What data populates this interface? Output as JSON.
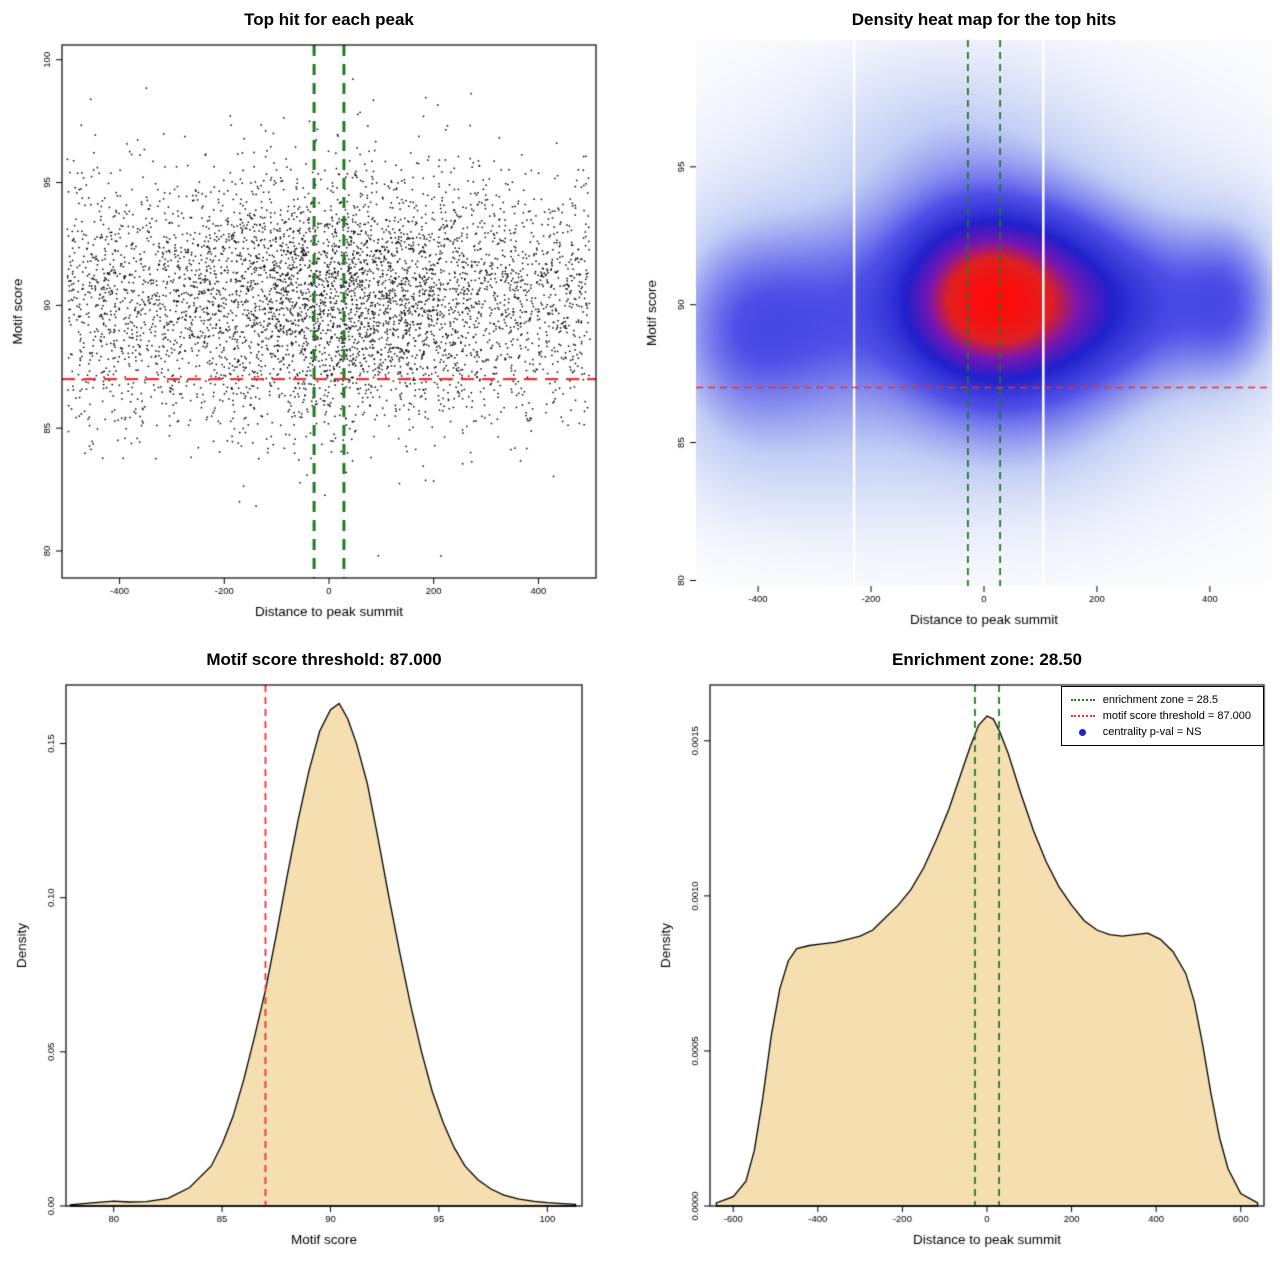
{
  "colors": {
    "red": "#F03030",
    "green": "#217A21",
    "blue": "#2020CC",
    "wheat": "#F5DEB0",
    "black": "#000000",
    "white": "#FFFFFF"
  },
  "chart_data": [
    {
      "id": "scatter",
      "type": "scatter",
      "title": "Top hit for each peak",
      "xlabel": "Distance to peak summit",
      "ylabel": "Motif score",
      "xlim": [
        -510,
        510
      ],
      "ylim": [
        78.9,
        100.6
      ],
      "xticks": [
        -400,
        -200,
        0,
        200,
        400
      ],
      "yticks": [
        80,
        85,
        90,
        95,
        100
      ],
      "n_points": 5200,
      "seed": 1337,
      "x_dist": {
        "uniform_frac": 0.7,
        "uniform_range": [
          -500,
          500
        ],
        "normal_mean": 0,
        "normal_sd": 150
      },
      "y_dist": {
        "mean": 90.3,
        "sd": 2.5,
        "clip": [
          79.5,
          100.2
        ]
      },
      "hline": {
        "y": 87
      },
      "vlines": {
        "x": [
          -28.5,
          28.5
        ]
      }
    },
    {
      "id": "heatmap",
      "type": "heatmap",
      "title": "Density heat map for the top hits",
      "xlabel": "Distance to peak summit",
      "ylabel": "Motif score",
      "xlim": [
        -510,
        510
      ],
      "ylim": [
        79.8,
        99.6
      ],
      "xticks": [
        -400,
        -200,
        0,
        200,
        400
      ],
      "yticks": [
        80,
        85,
        90,
        95
      ],
      "hline": {
        "y": 87
      },
      "vlines": {
        "x": [
          -28.5,
          28.5
        ]
      },
      "white_stripes_x": [
        -230,
        105
      ],
      "color_stops": [
        {
          "t": 0.0,
          "c": "#FFFFFF"
        },
        {
          "t": 0.2,
          "c": "#C2CEF5"
        },
        {
          "t": 0.42,
          "c": "#5050E8"
        },
        {
          "t": 0.6,
          "c": "#2020CC"
        },
        {
          "t": 0.74,
          "c": "#7716B2"
        },
        {
          "t": 0.86,
          "c": "#E02020"
        },
        {
          "t": 1.0,
          "c": "#FF0A0A"
        }
      ],
      "blobs": [
        {
          "x": 0,
          "y": 90.2,
          "sx": 100,
          "sy": 2.1,
          "a": 1.0
        },
        {
          "x": 0,
          "y": 90.1,
          "sx": 160,
          "sy": 3.1,
          "a": 0.5
        },
        {
          "x": -10,
          "y": 90.0,
          "sx": 340,
          "sy": 4.6,
          "a": 0.28
        },
        {
          "x": -440,
          "y": 89.0,
          "sx": 85,
          "sy": 2.6,
          "a": 0.45
        },
        {
          "x": -300,
          "y": 89.3,
          "sx": 90,
          "sy": 2.4,
          "a": 0.33
        },
        {
          "x": 150,
          "y": 89.9,
          "sx": 90,
          "sy": 2.3,
          "a": 0.4
        },
        {
          "x": 310,
          "y": 90.0,
          "sx": 110,
          "sy": 2.1,
          "a": 0.4
        },
        {
          "x": 440,
          "y": 90.1,
          "sx": 60,
          "sy": 2.0,
          "a": 0.38
        },
        {
          "x": -320,
          "y": 84.3,
          "sx": 160,
          "sy": 1.7,
          "a": 0.1
        },
        {
          "x": -60,
          "y": 96.3,
          "sx": 150,
          "sy": 2.0,
          "a": 0.13
        },
        {
          "x": 80,
          "y": 84.8,
          "sx": 120,
          "sy": 1.6,
          "a": 0.09
        }
      ]
    },
    {
      "id": "score_density",
      "type": "area",
      "title": "Motif score threshold: 87.000",
      "xlabel": "Motif score",
      "ylabel": "Density",
      "xlim": [
        77.8,
        101.6
      ],
      "ylim": [
        0,
        0.169
      ],
      "xticks": [
        80,
        85,
        90,
        95,
        100
      ],
      "yticks": [
        0,
        0.05,
        0.1,
        0.15
      ],
      "ytick_labels": [
        "0.00",
        "0.05",
        "0.10",
        "0.15"
      ],
      "vline": {
        "x": 87
      },
      "points": [
        [
          78,
          0.0004
        ],
        [
          79,
          0.001
        ],
        [
          80,
          0.0016
        ],
        [
          80.7,
          0.0013
        ],
        [
          81.5,
          0.0014
        ],
        [
          82.5,
          0.0025
        ],
        [
          83.5,
          0.006
        ],
        [
          84.5,
          0.013
        ],
        [
          85,
          0.02
        ],
        [
          85.5,
          0.029
        ],
        [
          86,
          0.041
        ],
        [
          86.5,
          0.055
        ],
        [
          87,
          0.07
        ],
        [
          87.5,
          0.088
        ],
        [
          88,
          0.107
        ],
        [
          88.5,
          0.125
        ],
        [
          89,
          0.141
        ],
        [
          89.5,
          0.154
        ],
        [
          90,
          0.161
        ],
        [
          90.4,
          0.163
        ],
        [
          90.8,
          0.158
        ],
        [
          91.2,
          0.15
        ],
        [
          91.7,
          0.137
        ],
        [
          92.2,
          0.119
        ],
        [
          92.7,
          0.1
        ],
        [
          93.2,
          0.082
        ],
        [
          93.7,
          0.065
        ],
        [
          94.2,
          0.05
        ],
        [
          94.7,
          0.037
        ],
        [
          95.2,
          0.027
        ],
        [
          95.7,
          0.019
        ],
        [
          96.2,
          0.013
        ],
        [
          96.8,
          0.0085
        ],
        [
          97.4,
          0.0055
        ],
        [
          98,
          0.0035
        ],
        [
          98.7,
          0.0022
        ],
        [
          99.4,
          0.0015
        ],
        [
          100,
          0.0011
        ],
        [
          100.7,
          0.0008
        ],
        [
          101.3,
          0.0005
        ]
      ]
    },
    {
      "id": "distance_density",
      "type": "area",
      "title": "Enrichment zone: 28.50",
      "xlabel": "Distance to peak summit",
      "ylabel": "Density",
      "xlim": [
        -655,
        655
      ],
      "ylim": [
        0,
        0.00168
      ],
      "xticks": [
        -600,
        -400,
        -200,
        0,
        200,
        400,
        600
      ],
      "yticks": [
        0,
        0.0005,
        0.001,
        0.0015
      ],
      "ytick_labels": [
        "0.0000",
        "0.0005",
        "0.0010",
        "0.0015"
      ],
      "vlines": {
        "x": [
          -28.5,
          28.5
        ]
      },
      "legend": {
        "items": [
          {
            "label": "enrichment zone = 28.5",
            "swatch": "dotted-line",
            "color": "green"
          },
          {
            "label": "motif score threshold = 87.000",
            "swatch": "dotted-line",
            "color": "red"
          },
          {
            "label": "centrality p-val = NS",
            "swatch": "dot",
            "color": "blue"
          }
        ]
      },
      "points": [
        [
          -640,
          1e-05
        ],
        [
          -600,
          3e-05
        ],
        [
          -570,
          8e-05
        ],
        [
          -550,
          0.00018
        ],
        [
          -530,
          0.00035
        ],
        [
          -510,
          0.00055
        ],
        [
          -490,
          0.0007
        ],
        [
          -470,
          0.00079
        ],
        [
          -450,
          0.00083
        ],
        [
          -420,
          0.00084
        ],
        [
          -390,
          0.000845
        ],
        [
          -360,
          0.00085
        ],
        [
          -330,
          0.00086
        ],
        [
          -300,
          0.00087
        ],
        [
          -270,
          0.00089
        ],
        [
          -240,
          0.00093
        ],
        [
          -210,
          0.00097
        ],
        [
          -180,
          0.00102
        ],
        [
          -150,
          0.00109
        ],
        [
          -120,
          0.00118
        ],
        [
          -90,
          0.00128
        ],
        [
          -60,
          0.0014
        ],
        [
          -40,
          0.00148
        ],
        [
          -20,
          0.00155
        ],
        [
          0,
          0.00158
        ],
        [
          15,
          0.00157
        ],
        [
          30,
          0.00153
        ],
        [
          50,
          0.00146
        ],
        [
          80,
          0.00133
        ],
        [
          110,
          0.00121
        ],
        [
          140,
          0.00111
        ],
        [
          170,
          0.00103
        ],
        [
          200,
          0.00097
        ],
        [
          230,
          0.00092
        ],
        [
          260,
          0.00089
        ],
        [
          290,
          0.000875
        ],
        [
          320,
          0.00087
        ],
        [
          350,
          0.000875
        ],
        [
          380,
          0.00088
        ],
        [
          410,
          0.00086
        ],
        [
          440,
          0.00082
        ],
        [
          470,
          0.00075
        ],
        [
          490,
          0.00066
        ],
        [
          510,
          0.00052
        ],
        [
          530,
          0.00036
        ],
        [
          550,
          0.00022
        ],
        [
          570,
          0.00012
        ],
        [
          600,
          4e-05
        ],
        [
          640,
          1e-05
        ]
      ]
    }
  ]
}
